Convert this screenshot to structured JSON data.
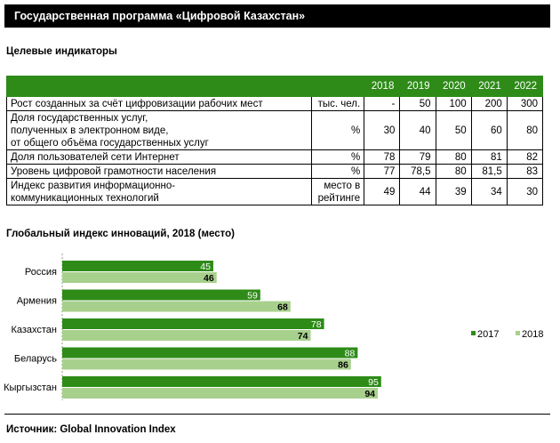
{
  "header": {
    "title": "Государственная программа «Цифровой Казахстан»"
  },
  "indicators": {
    "section_title": "Целевые индикаторы",
    "years": [
      "2018",
      "2019",
      "2020",
      "2021",
      "2022"
    ],
    "rows": [
      {
        "name": "Рост созданных за счёт цифровизации рабочих мест",
        "unit": "тыс. чел.",
        "values": [
          "-",
          "50",
          "100",
          "200",
          "300"
        ]
      },
      {
        "name": "Доля государственных услуг,\nполученных в электронном виде,\nот общего объёма государственных услуг",
        "unit": "%",
        "values": [
          "30",
          "40",
          "50",
          "60",
          "80"
        ]
      },
      {
        "name": "Доля пользователей сети Интернет",
        "unit": "%",
        "values": [
          "78",
          "79",
          "80",
          "81",
          "82"
        ]
      },
      {
        "name": "Уровень цифровой грамотности населения",
        "unit": "%",
        "values": [
          "77",
          "78,5",
          "80",
          "81,5",
          "83"
        ]
      },
      {
        "name": "Индекс развития информационно-\nкоммуникационных технологий",
        "unit": "место в\nрейтинге",
        "values": [
          "49",
          "44",
          "39",
          "34",
          "30"
        ]
      }
    ]
  },
  "chart_data": {
    "type": "bar",
    "orientation": "horizontal",
    "title": "Глобальный индекс инноваций,  2018 (место)",
    "categories": [
      "Россия",
      "Армения",
      "Казахстан",
      "Беларусь",
      "Кыргызстан"
    ],
    "series": [
      {
        "name": "2017",
        "values": [
          45,
          59,
          78,
          88,
          95
        ],
        "color": "#2e8b18"
      },
      {
        "name": "2018",
        "values": [
          46,
          68,
          74,
          86,
          94
        ],
        "color": "#a8d08d"
      }
    ],
    "xlim": [
      0,
      130
    ],
    "grid": false,
    "legend": "right"
  },
  "footer": {
    "source": "Источник: Global Innovation Index"
  }
}
